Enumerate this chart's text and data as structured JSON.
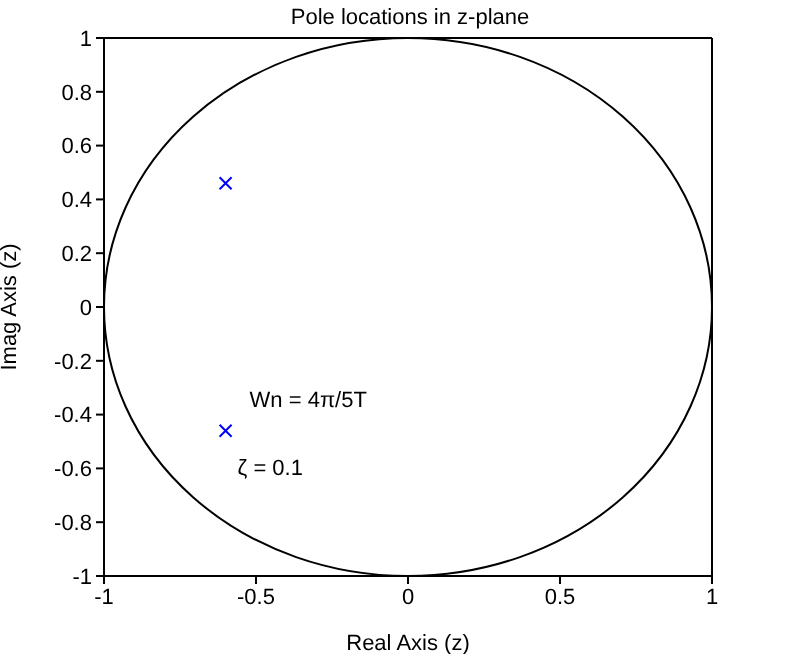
{
  "chart_data": {
    "type": "scatter",
    "title": "Pole locations in z-plane",
    "xlabel": "Real Axis (z)",
    "ylabel": "Imag Axis (z)",
    "xlim": [
      -1,
      1
    ],
    "ylim": [
      -1,
      1
    ],
    "xticks": [
      -1,
      -0.5,
      0,
      0.5,
      1
    ],
    "yticks": [
      -1,
      -0.8,
      -0.6,
      -0.4,
      -0.2,
      0,
      0.2,
      0.4,
      0.6,
      0.8,
      1
    ],
    "series": [
      {
        "color": "#0000ff",
        "marker": "cross",
        "x": [
          -0.6,
          -0.6
        ],
        "values": [
          0.46,
          -0.46
        ]
      }
    ],
    "annotations": [
      {
        "text": "Wn  = 4π/5T",
        "x": -0.6,
        "y": -0.46
      },
      {
        "text": "ζ = 0.1",
        "x": -0.6,
        "y": -0.46
      }
    ]
  }
}
